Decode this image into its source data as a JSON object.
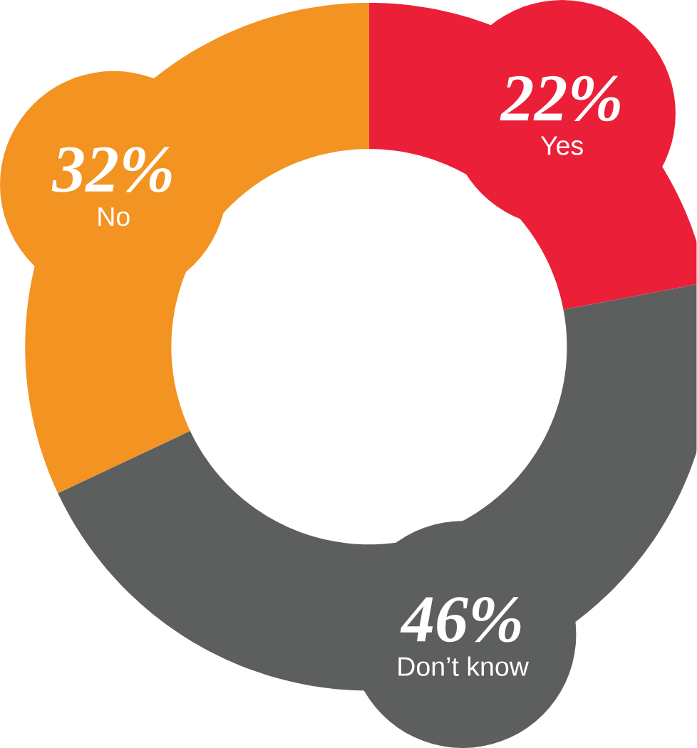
{
  "chart_data": {
    "type": "donut",
    "categories": [
      "Yes",
      "Don’t know",
      "No"
    ],
    "values": [
      22,
      46,
      32
    ],
    "colors": [
      "#ec1f38",
      "#5d5e5e",
      "#f39321"
    ],
    "value_labels": [
      "22%",
      "46%",
      "32%"
    ]
  }
}
